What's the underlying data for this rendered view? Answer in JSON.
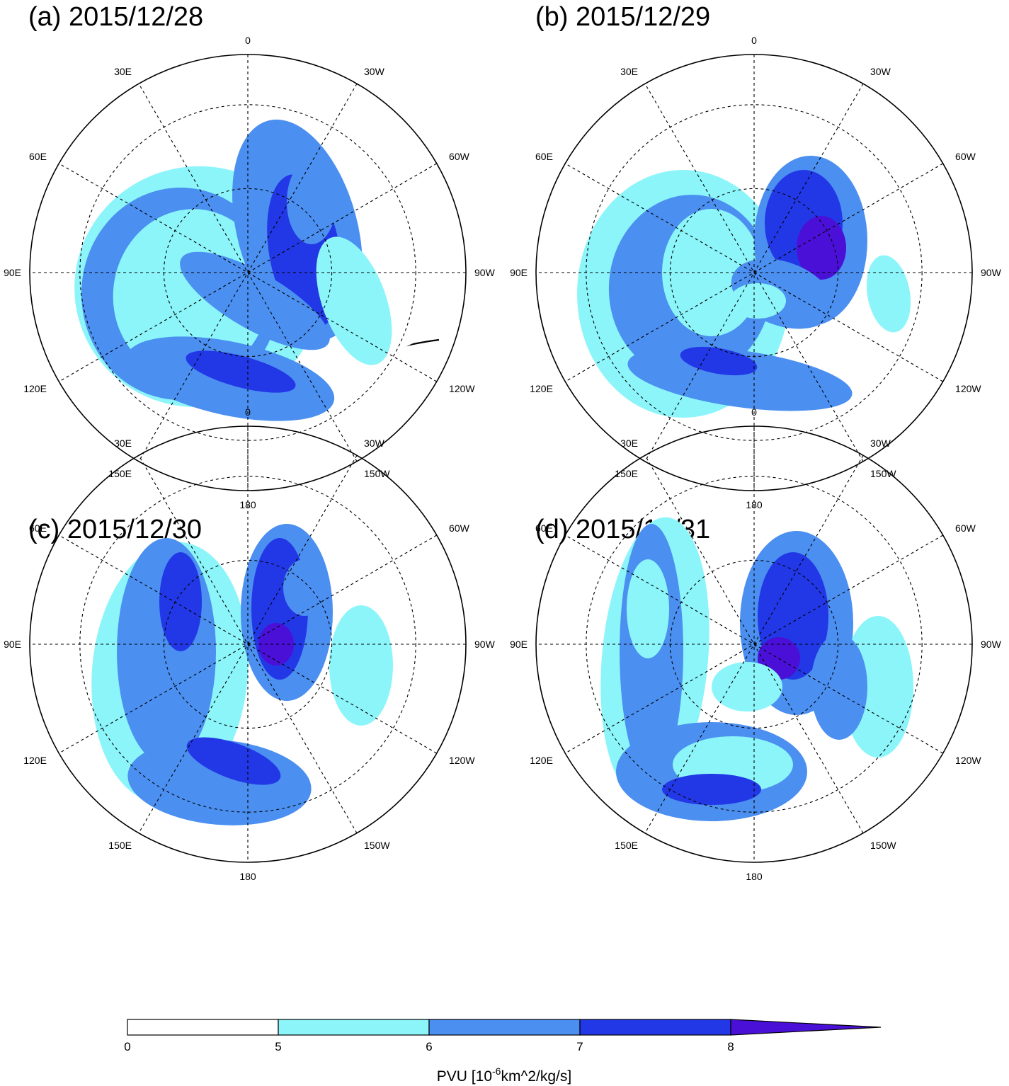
{
  "panels": [
    {
      "id": "a",
      "title": "(a) 2015/12/28"
    },
    {
      "id": "b",
      "title": "(b) 2015/12/29"
    },
    {
      "id": "c",
      "title": "(c) 2015/12/30"
    },
    {
      "id": "d",
      "title": "(d) 2015/12/31"
    }
  ],
  "longitude_labels": [
    "0",
    "30W",
    "60W",
    "90W",
    "120W",
    "150W",
    "180",
    "150E",
    "120E",
    "90E",
    "60E",
    "30E"
  ],
  "colorbar": {
    "levels": [
      "0",
      "5",
      "6",
      "7",
      "8"
    ],
    "colors": [
      "#ffffff",
      "#8cf5fa",
      "#4b8ff0",
      "#2238e6",
      "#4a10d8"
    ],
    "title_prefix": "PVU [10",
    "title_exponent": "-6",
    "title_suffix": "km^2/kg/s]"
  }
}
